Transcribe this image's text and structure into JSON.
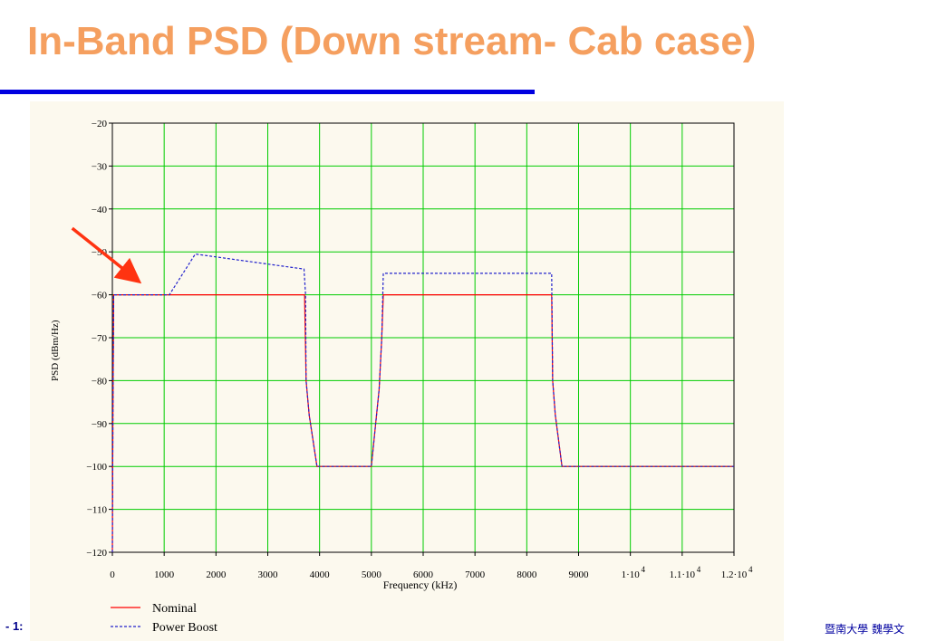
{
  "slide": {
    "title": "In-Band PSD (Down stream- Cab case)",
    "title_color": "#f59f5f",
    "rule_color": "#0000e0",
    "panel_color": "#fcf9ee",
    "footer_left": "- 1:",
    "footer_right": "暨南大學 魏學文"
  },
  "chart_data": {
    "type": "line",
    "title": "",
    "xlabel": "Frequency (kHz)",
    "ylabel": "PSD (dBm/Hz)",
    "xlim": [
      0,
      12000
    ],
    "ylim": [
      -120,
      -20
    ],
    "grid": true,
    "grid_color": "#00cc00",
    "x_ticks": [
      {
        "value": 0,
        "label": "0"
      },
      {
        "value": 1000,
        "label": "1000"
      },
      {
        "value": 2000,
        "label": "2000"
      },
      {
        "value": 3000,
        "label": "3000"
      },
      {
        "value": 4000,
        "label": "4000"
      },
      {
        "value": 5000,
        "label": "5000"
      },
      {
        "value": 6000,
        "label": "6000"
      },
      {
        "value": 7000,
        "label": "7000"
      },
      {
        "value": 8000,
        "label": "8000"
      },
      {
        "value": 9000,
        "label": "9000"
      },
      {
        "value": 10000,
        "label": "1·10",
        "exp": "4"
      },
      {
        "value": 11000,
        "label": "1.1·10",
        "exp": "4"
      },
      {
        "value": 12000,
        "label": "1.2·10",
        "exp": "4"
      }
    ],
    "y_ticks": [
      {
        "value": -20,
        "label": "−20"
      },
      {
        "value": -30,
        "label": "−30"
      },
      {
        "value": -40,
        "label": "−40"
      },
      {
        "value": -50,
        "label": "−50"
      },
      {
        "value": -60,
        "label": "−60"
      },
      {
        "value": -70,
        "label": "−70"
      },
      {
        "value": -80,
        "label": "−80"
      },
      {
        "value": -90,
        "label": "−90"
      },
      {
        "value": -100,
        "label": "−100"
      },
      {
        "value": -110,
        "label": "−110"
      },
      {
        "value": -120,
        "label": "−120"
      }
    ],
    "series": [
      {
        "name": "Nominal",
        "color": "#ff0000",
        "dash": "solid",
        "points": [
          [
            0,
            -120
          ],
          [
            10,
            -88
          ],
          [
            25,
            -60
          ],
          [
            3710,
            -60
          ],
          [
            3740,
            -80
          ],
          [
            3800,
            -88
          ],
          [
            3950,
            -100
          ],
          [
            5000,
            -100
          ],
          [
            5150,
            -82
          ],
          [
            5200,
            -70
          ],
          [
            5230,
            -60
          ],
          [
            8480,
            -60
          ],
          [
            8500,
            -80
          ],
          [
            8550,
            -88
          ],
          [
            8680,
            -100
          ],
          [
            12000,
            -100
          ]
        ]
      },
      {
        "name": "Power Boost",
        "color": "#2222cc",
        "dash": "dashed",
        "points": [
          [
            0,
            -120
          ],
          [
            10,
            -88
          ],
          [
            25,
            -60
          ],
          [
            1100,
            -60
          ],
          [
            1600,
            -50.5
          ],
          [
            3700,
            -54
          ],
          [
            3730,
            -60
          ],
          [
            3740,
            -80
          ],
          [
            3800,
            -88
          ],
          [
            3950,
            -100
          ],
          [
            5000,
            -100
          ],
          [
            5150,
            -82
          ],
          [
            5200,
            -70
          ],
          [
            5230,
            -55
          ],
          [
            8480,
            -55
          ],
          [
            8500,
            -80
          ],
          [
            8550,
            -88
          ],
          [
            8680,
            -100
          ],
          [
            12000,
            -100
          ]
        ]
      }
    ],
    "annotation": {
      "type": "arrow",
      "color": "#ff3311",
      "from": [
        -775,
        -44.5
      ],
      "to": [
        420,
        -56
      ]
    }
  }
}
